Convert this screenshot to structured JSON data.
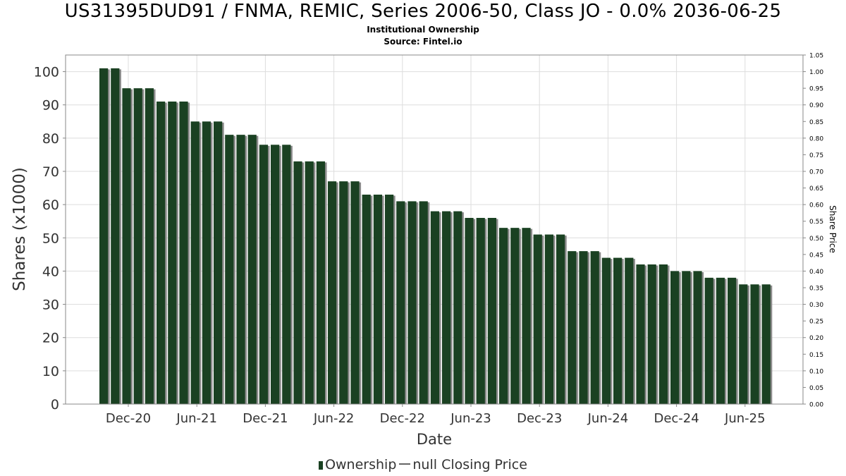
{
  "title": "US31395DUD91 / FNMA, REMIC, Series 2006-50, Class JO - 0.0% 2036-06-25",
  "subtitle1": "Institutional Ownership",
  "subtitle2": "Source: Fintel.io",
  "legend": {
    "ownership": "Ownership",
    "price": "null Closing Price"
  },
  "colors": {
    "bar": "#1a4122",
    "bar_shadow": "#8a8a8a",
    "grid": "#dddddd",
    "plot_border": "#888888"
  },
  "chart_data": {
    "type": "bar",
    "xlabel": "Date",
    "ylabel": "Shares (x1000)",
    "y2label": "Share Price",
    "ylim": [
      0,
      105
    ],
    "y2lim": [
      0,
      1.05
    ],
    "yticks": [
      "0",
      "10",
      "20",
      "30",
      "40",
      "50",
      "60",
      "70",
      "80",
      "90",
      "100"
    ],
    "y2ticks": [
      "0.00",
      "0.05",
      "0.10",
      "0.15",
      "0.20",
      "0.25",
      "0.30",
      "0.35",
      "0.40",
      "0.45",
      "0.50",
      "0.55",
      "0.60",
      "0.65",
      "0.70",
      "0.75",
      "0.80",
      "0.85",
      "0.90",
      "0.95",
      "1.00",
      "1.05"
    ],
    "xticks": [
      "Dec-20",
      "Jun-21",
      "Dec-21",
      "Jun-22",
      "Dec-22",
      "Jun-23",
      "Dec-23",
      "Jun-24",
      "Dec-24",
      "Jun-25"
    ],
    "grid": true,
    "legend_position": "bottom",
    "series": [
      {
        "name": "Ownership",
        "values": [
          101,
          101,
          95,
          95,
          95,
          91,
          91,
          91,
          85,
          85,
          85,
          81,
          81,
          81,
          78,
          78,
          78,
          73,
          73,
          73,
          67,
          67,
          67,
          63,
          63,
          63,
          61,
          61,
          61,
          58,
          58,
          58,
          56,
          56,
          56,
          53,
          53,
          53,
          51,
          51,
          51,
          46,
          46,
          46,
          44,
          44,
          44,
          42,
          42,
          42,
          40,
          40,
          40,
          38,
          38,
          38,
          36,
          36,
          36
        ]
      }
    ]
  }
}
